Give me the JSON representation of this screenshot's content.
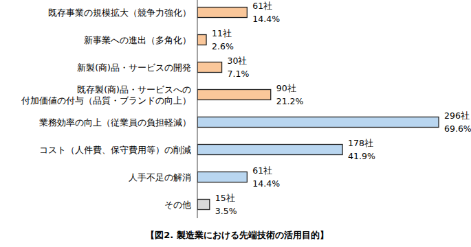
{
  "chart_data": {
    "type": "bar",
    "orientation": "horizontal",
    "title": "【図2. 製造業における先端技術の活用目的】",
    "categories": [
      "既存事業の規模拡大（競争力強化）",
      "新事業への進出（多角化）",
      "新製(商)品・サービスの開発",
      "既存製(商)品・サービスへの\n付加価値の付与（品質・ブランドの向上）",
      "業務効率の向上（従業員の負担軽減）",
      "コスト（人件費、保守費用等）の削減",
      "人手不足の解消",
      "その他"
    ],
    "values": [
      61,
      11,
      30,
      90,
      296,
      178,
      61,
      15
    ],
    "value_labels": [
      "61社",
      "11社",
      "30社",
      "90社",
      "296社",
      "178社",
      "61社",
      "15社"
    ],
    "shares": [
      14.4,
      2.6,
      7.1,
      21.2,
      69.6,
      41.9,
      14.4,
      3.5
    ],
    "share_labels": [
      "14.4%",
      "2.6%",
      "7.1%",
      "21.2%",
      "69.6%",
      "41.9%",
      "14.4%",
      "3.5%"
    ],
    "colors": [
      "#fac79a",
      "#fac79a",
      "#fac79a",
      "#fac79a",
      "#b9d6f0",
      "#b9d6f0",
      "#b9d6f0",
      "#d9d9d9"
    ],
    "xlim": [
      0,
      296
    ],
    "data_labels": true,
    "tick_labels": "y",
    "grid": false
  }
}
